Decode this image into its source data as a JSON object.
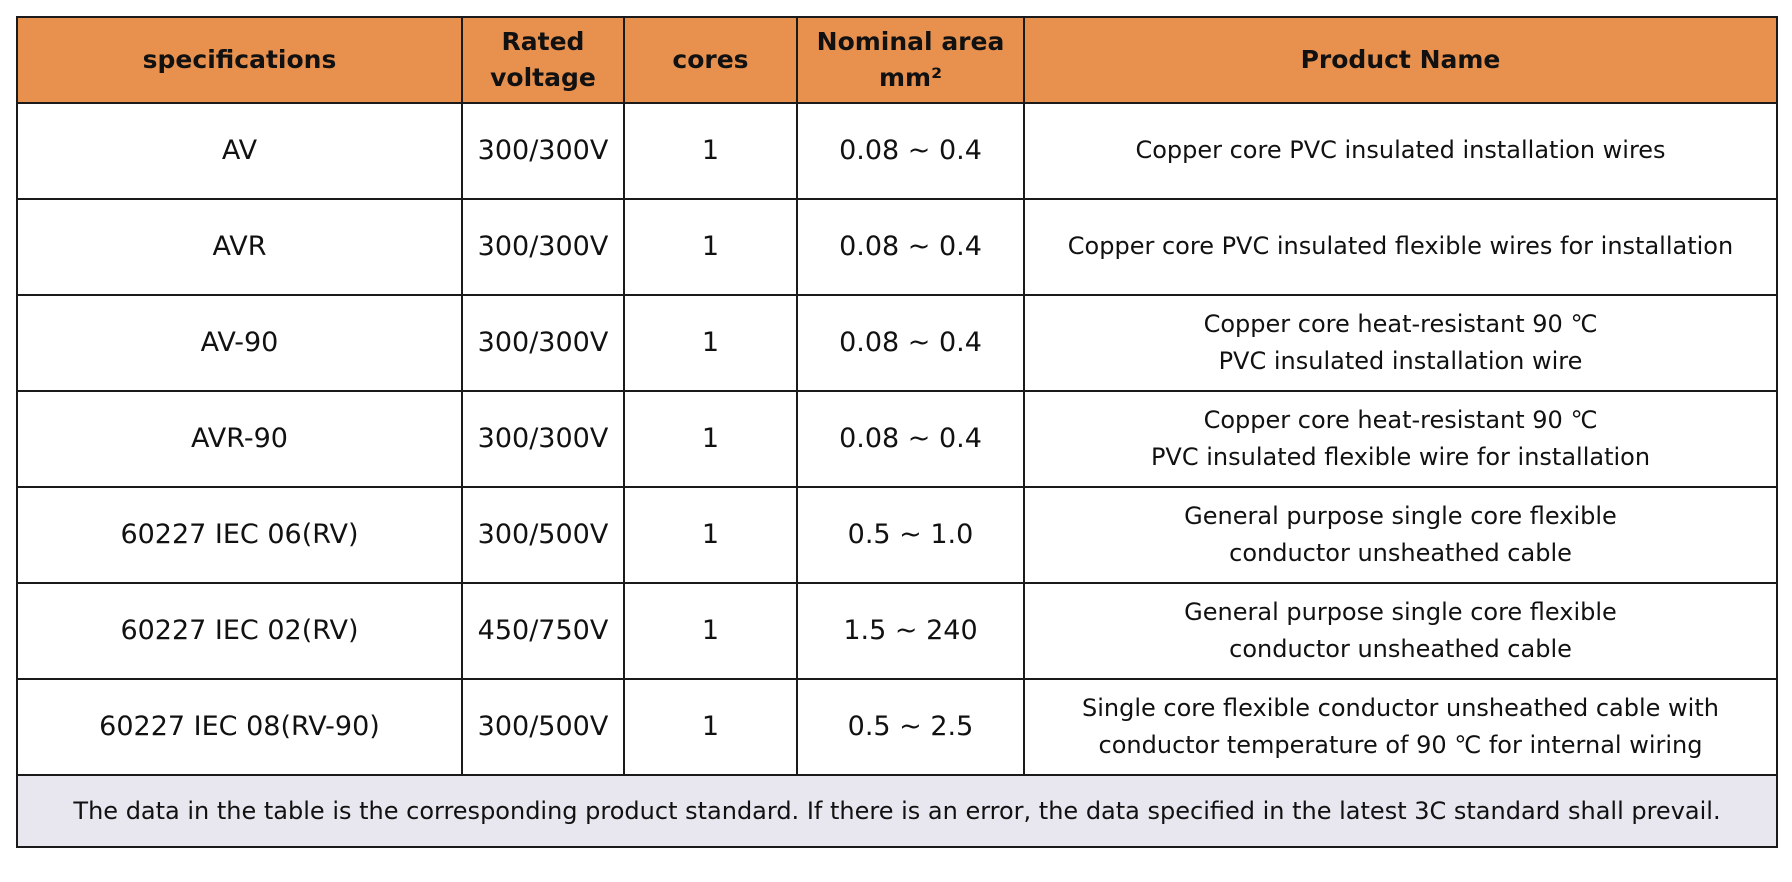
{
  "table": {
    "headers": [
      "specifications",
      "Rated voltage",
      "cores",
      "Nominal area mm²",
      "Product Name"
    ],
    "rows": [
      {
        "spec": "AV",
        "voltage": "300/300V",
        "cores": "1",
        "area": "0.08 ~ 0.4",
        "name": [
          "Copper core PVC insulated installation wires"
        ]
      },
      {
        "spec": "AVR",
        "voltage": "300/300V",
        "cores": "1",
        "area": "0.08 ~ 0.4",
        "name": [
          "Copper core PVC insulated flexible wires for installation"
        ]
      },
      {
        "spec": "AV-90",
        "voltage": "300/300V",
        "cores": "1",
        "area": "0.08 ~ 0.4",
        "name": [
          "Copper core heat-resistant 90 ℃",
          "PVC insulated installation wire"
        ]
      },
      {
        "spec": "AVR-90",
        "voltage": "300/300V",
        "cores": "1",
        "area": "0.08 ~ 0.4",
        "name": [
          "Copper core heat-resistant 90 ℃",
          "PVC insulated flexible wire for installation"
        ]
      },
      {
        "spec": "60227 IEC 06(RV)",
        "voltage": "300/500V",
        "cores": "1",
        "area": "0.5 ~ 1.0",
        "name": [
          "General purpose single core flexible",
          "conductor unsheathed cable"
        ]
      },
      {
        "spec": "60227 IEC 02(RV)",
        "voltage": "450/750V",
        "cores": "1",
        "area": "1.5 ~ 240",
        "name": [
          "General purpose single core flexible",
          "conductor unsheathed cable"
        ]
      },
      {
        "spec": "60227 IEC 08(RV-90)",
        "voltage": "300/500V",
        "cores": "1",
        "area": "0.5 ~ 2.5",
        "name": [
          "Single core flexible conductor unsheathed cable with",
          "conductor temperature of 90 ℃ for internal wiring"
        ]
      }
    ],
    "footnote": "The data in the table is the corresponding product standard. If there is an error, the data specified in the latest 3C standard shall prevail."
  },
  "colors": {
    "header_bg": "#e8914f",
    "footer_bg": "#e8e6ee",
    "border": "#1a1a1a"
  }
}
